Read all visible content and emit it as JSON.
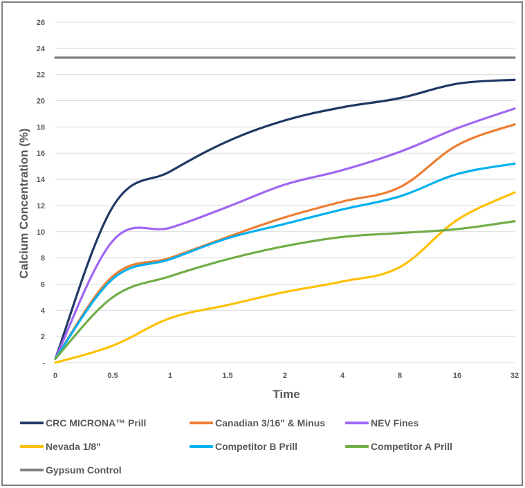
{
  "chart_data": {
    "type": "line",
    "title": "",
    "xlabel": "Time",
    "ylabel": "Calcium Concentration (%)",
    "categories": [
      "0",
      "0.5",
      "1",
      "1.5",
      "2",
      "4",
      "8",
      "16",
      "32"
    ],
    "y_tick_labels": [
      "-",
      "2",
      "4",
      "6",
      "8",
      "10",
      "12",
      "14",
      "16",
      "18",
      "20",
      "22",
      "24",
      "26"
    ],
    "ylim": [
      0,
      26
    ],
    "grid": true,
    "legend_position": "bottom",
    "series": [
      {
        "name": "CRC MICRONA™ Prill",
        "color": "#203864",
        "values": [
          0.3,
          11.9,
          14.6,
          16.9,
          18.5,
          19.5,
          20.2,
          21.3,
          21.6
        ]
      },
      {
        "name": "Canadian 3/16\" & Minus",
        "color": "#ed7d31",
        "values": [
          0.3,
          6.6,
          8.0,
          9.6,
          11.1,
          12.3,
          13.4,
          16.6,
          18.2
        ]
      },
      {
        "name": "NEV Fines",
        "color": "#a066f4",
        "values": [
          0.3,
          9.3,
          10.3,
          11.9,
          13.6,
          14.7,
          16.1,
          17.9,
          19.4
        ]
      },
      {
        "name": "Nevada 1/8\"",
        "color": "#ffc000",
        "values": [
          0.0,
          1.3,
          3.4,
          4.4,
          5.4,
          6.2,
          7.3,
          10.9,
          13.0
        ]
      },
      {
        "name": "Competitor B Prill",
        "color": "#00b0f0",
        "values": [
          0.3,
          6.4,
          7.9,
          9.5,
          10.6,
          11.7,
          12.7,
          14.4,
          15.2
        ]
      },
      {
        "name": "Competitor A Prill",
        "color": "#70ad47",
        "values": [
          0.3,
          5.0,
          6.6,
          7.9,
          8.9,
          9.6,
          9.9,
          10.2,
          10.8
        ]
      },
      {
        "name": "Gypsum Control",
        "color": "#808080",
        "values": [
          23.3,
          23.3,
          23.3,
          23.3,
          23.3,
          23.3,
          23.3,
          23.3,
          23.3
        ]
      }
    ]
  }
}
